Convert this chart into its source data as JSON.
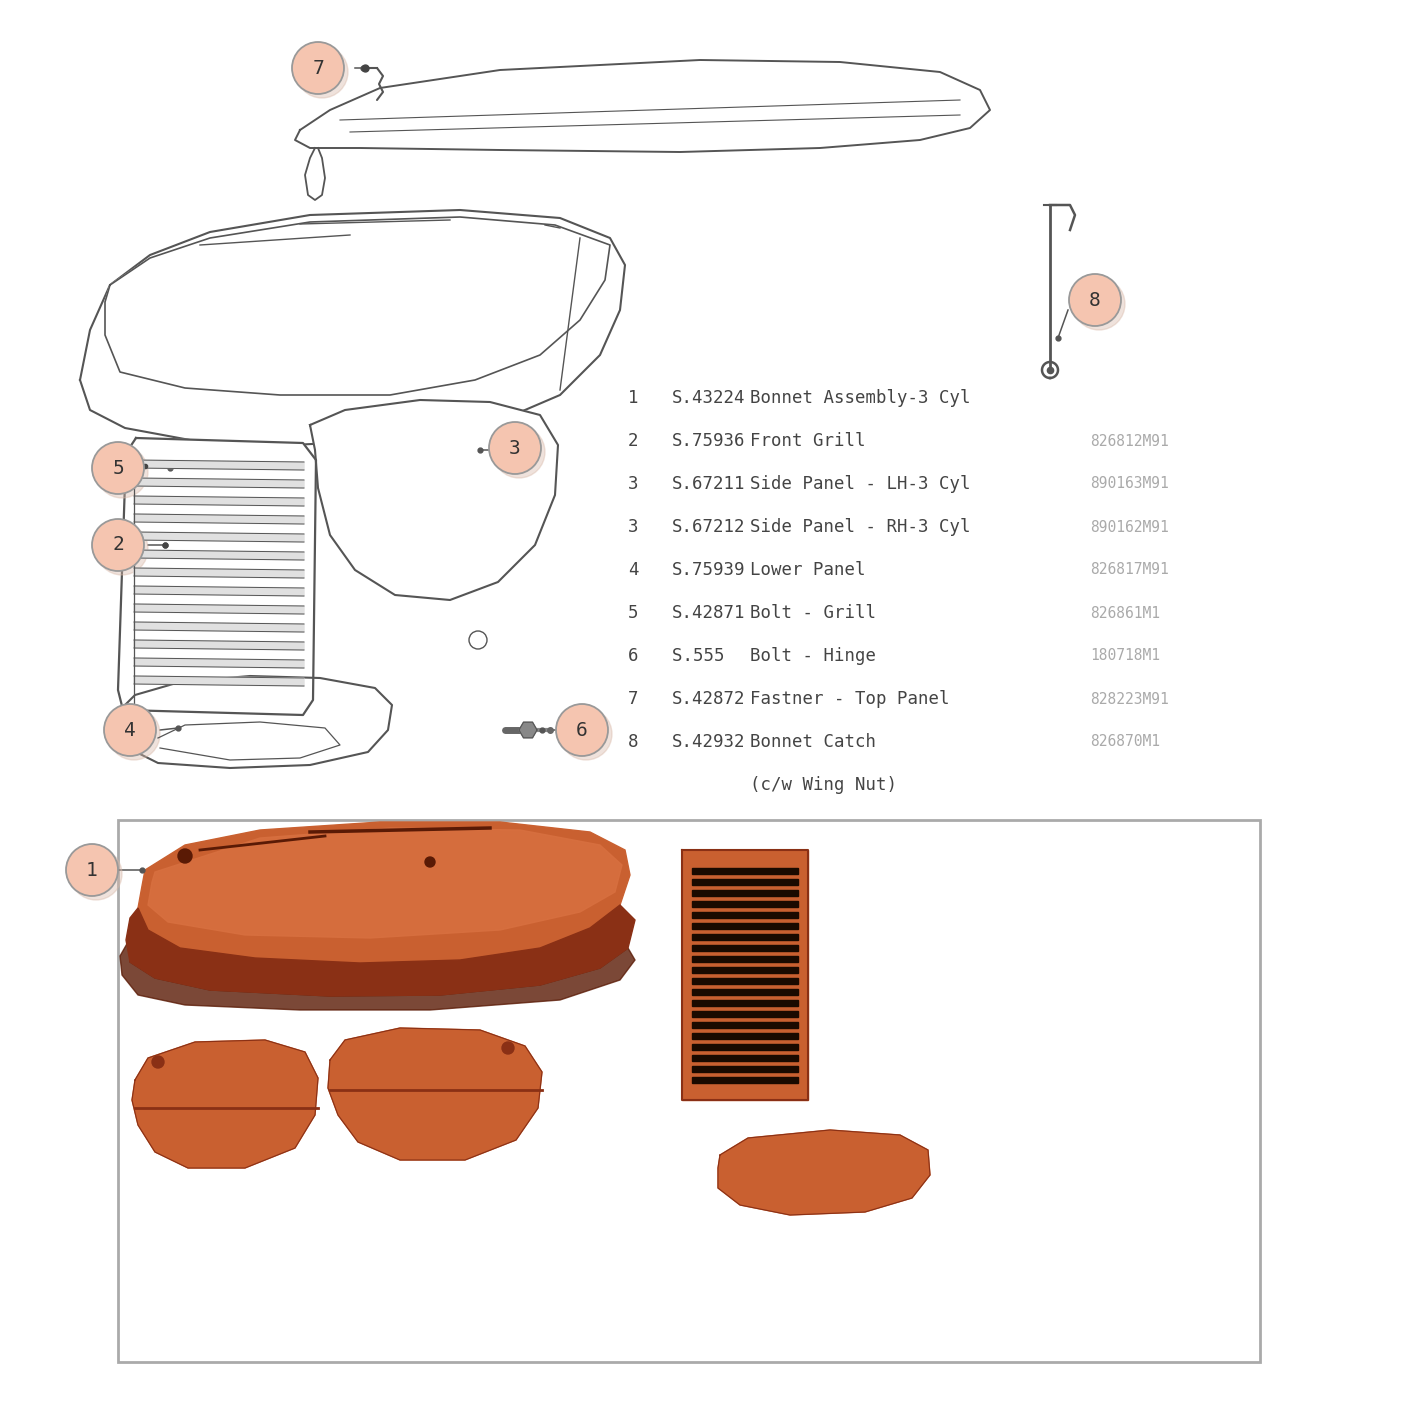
{
  "background_color": "#ffffff",
  "figure_size": [
    14.06,
    14.06
  ],
  "dpi": 100,
  "label_circle_fill": "#f5c5b0",
  "label_circle_edge": "#999999",
  "label_shadow_color": "#d8b8a8",
  "diagram_line_color": "#555555",
  "parts_text_color": "#444444",
  "ref_text_color": "#aaaaaa",
  "connector_dot_color": "#555555",
  "photo_box_edge": "#aaaaaa",
  "bonnet_red": "#c96030",
  "bonnet_dark": "#8a3015",
  "bonnet_shadow": "#5a1a05",
  "parts_list": [
    {
      "num": "1",
      "part_no": "S.43224",
      "desc": "Bonnet Assembly-3 Cyl",
      "ref": ""
    },
    {
      "num": "2",
      "part_no": "S.75936",
      "desc": "Front Grill",
      "ref": "826812M91"
    },
    {
      "num": "3",
      "part_no": "S.67211",
      "desc": "Side Panel - LH-3 Cyl",
      "ref": "890163M91"
    },
    {
      "num": "3",
      "part_no": "S.67212",
      "desc": "Side Panel - RH-3 Cyl",
      "ref": "890162M91"
    },
    {
      "num": "4",
      "part_no": "S.75939",
      "desc": "Lower Panel",
      "ref": "826817M91"
    },
    {
      "num": "5",
      "part_no": "S.42871",
      "desc": "Bolt - Grill",
      "ref": "826861M1"
    },
    {
      "num": "6",
      "part_no": "S.555  ",
      "desc": "Bolt - Hinge",
      "ref": "180718M1"
    },
    {
      "num": "7",
      "part_no": "S.42872",
      "desc": "Fastner - Top Panel",
      "ref": "828223M91"
    },
    {
      "num": "8",
      "part_no": "S.42932",
      "desc": "Bonnet Catch",
      "ref": "826870M1"
    },
    {
      "num": "",
      "part_no": "",
      "desc": "(c/w Wing Nut)",
      "ref": ""
    }
  ]
}
